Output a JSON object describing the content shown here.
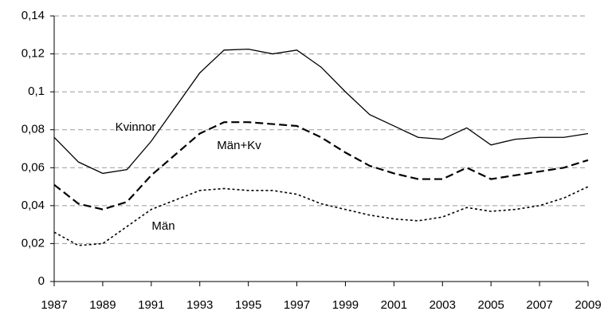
{
  "chart_data": {
    "type": "line",
    "x": [
      1987,
      1988,
      1989,
      1990,
      1991,
      1992,
      1993,
      1994,
      1995,
      1996,
      1997,
      1998,
      1999,
      2000,
      2001,
      2002,
      2003,
      2004,
      2005,
      2006,
      2007,
      2008,
      2009
    ],
    "series": [
      {
        "name": "Kvinnor",
        "color": "#000000",
        "style": "solid",
        "values": [
          0.076,
          0.063,
          0.057,
          0.059,
          0.074,
          0.092,
          0.11,
          0.122,
          0.1225,
          0.12,
          0.122,
          0.113,
          0.1,
          0.088,
          0.082,
          0.076,
          0.075,
          0.081,
          0.072,
          0.075,
          0.076,
          0.076,
          0.078
        ]
      },
      {
        "name": "Män+Kv",
        "color": "#000000",
        "style": "dashed",
        "values": [
          0.051,
          0.041,
          0.038,
          0.042,
          0.056,
          0.067,
          0.078,
          0.084,
          0.084,
          0.083,
          0.082,
          0.076,
          0.068,
          0.061,
          0.057,
          0.054,
          0.054,
          0.06,
          0.054,
          0.056,
          0.058,
          0.06,
          0.064
        ]
      },
      {
        "name": "Män",
        "color": "#000000",
        "style": "dotted",
        "values": [
          0.026,
          0.019,
          0.02,
          0.029,
          0.038,
          0.043,
          0.048,
          0.049,
          0.048,
          0.048,
          0.046,
          0.041,
          0.038,
          0.035,
          0.033,
          0.032,
          0.034,
          0.039,
          0.037,
          0.038,
          0.04,
          0.044,
          0.05
        ]
      }
    ],
    "xlim": [
      1987,
      2009
    ],
    "xticks": [
      1987,
      1989,
      1991,
      1993,
      1995,
      1997,
      1999,
      2001,
      2003,
      2005,
      2007,
      2009
    ],
    "ylim": [
      0,
      0.14
    ],
    "yticks": [
      0,
      {
        "value": 0.02,
        "label": "0,02"
      },
      {
        "value": 0.04,
        "label": "0,04"
      },
      {
        "value": 0.06,
        "label": "0,06"
      },
      {
        "value": 0.08,
        "label": "0,08"
      },
      {
        "value": 0.1,
        "label": "0,1"
      },
      {
        "value": 0.12,
        "label": "0,12"
      },
      {
        "value": 0.14,
        "label": "0,14"
      }
    ],
    "grid": true
  }
}
